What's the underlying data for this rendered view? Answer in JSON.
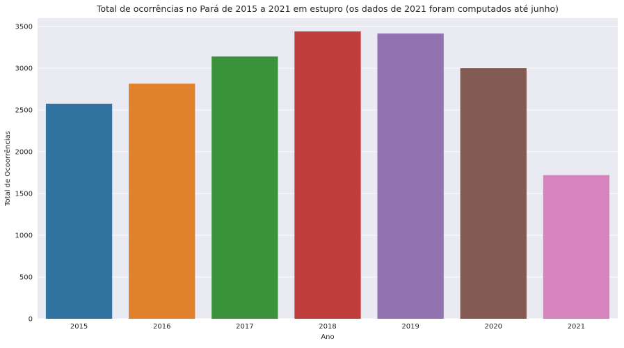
{
  "chart_data": {
    "type": "bar",
    "title": "Total de ocorrências no Pará de 2015 a 2021 em estupro (os dados de 2021 foram computados até junho)",
    "xlabel": "Ano",
    "ylabel": "Total de Ocoorrências",
    "categories": [
      "2015",
      "2016",
      "2017",
      "2018",
      "2019",
      "2020",
      "2021"
    ],
    "values": [
      2575,
      2815,
      3140,
      3440,
      3415,
      3000,
      1720
    ],
    "ylim": [
      0,
      3600
    ],
    "yticks": [
      0,
      500,
      1000,
      1500,
      2000,
      2500,
      3000,
      3500
    ],
    "grid": true,
    "legend": "none",
    "colors": [
      "#3274a1",
      "#e1812c",
      "#3a923a",
      "#c03d3e",
      "#9372b2",
      "#845b53",
      "#d684bd"
    ],
    "background_color": "#eaeaf2",
    "grid_color": "#ffffff"
  }
}
